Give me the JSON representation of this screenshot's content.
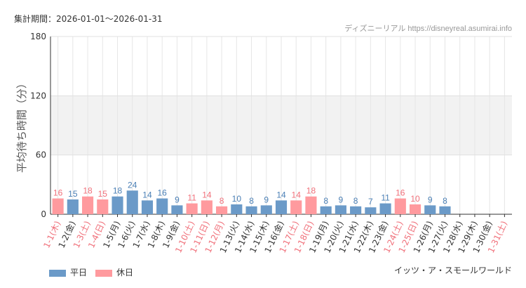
{
  "header": {
    "period": "集計期間：2026-01-01～2026-01-31",
    "source": "ディズニーリアル https://disneyreal.asumirai.info",
    "attraction": "イッツ・ア・スモールワールド"
  },
  "legend": {
    "weekday": "平日",
    "holiday": "休日"
  },
  "colors": {
    "weekday": "#6b9ac8",
    "holiday": "#ff9a9e",
    "weekday_text": "#4a7fb5",
    "holiday_text": "#f0707a",
    "band": "#f2f2f2"
  },
  "chart_data": {
    "type": "bar",
    "ylabel": "平均待ち時間（分）",
    "ylim": [
      0,
      180
    ],
    "yticks": [
      0,
      60,
      120,
      180
    ],
    "grid": true,
    "legend_position": "bottom-left",
    "categories": [
      "1-1(木)",
      "1-2(金)",
      "1-3(土)",
      "1-4(日)",
      "1-5(月)",
      "1-6(火)",
      "1-7(水)",
      "1-8(木)",
      "1-9(金)",
      "1-10(土)",
      "1-11(日)",
      "1-12(月)",
      "1-13(火)",
      "1-14(水)",
      "1-15(木)",
      "1-16(金)",
      "1-17(土)",
      "1-18(日)",
      "1-19(月)",
      "1-20(火)",
      "1-21(水)",
      "1-22(木)",
      "1-23(金)",
      "1-24(土)",
      "1-25(日)",
      "1-26(月)",
      "1-27(火)",
      "1-28(水)",
      "1-29(木)",
      "1-30(金)",
      "1-31(土)"
    ],
    "values": [
      16,
      15,
      18,
      15,
      18,
      24,
      14,
      16,
      9,
      11,
      14,
      8,
      10,
      8,
      9,
      14,
      14,
      18,
      8,
      9,
      8,
      7,
      11,
      16,
      10,
      9,
      8,
      null,
      null,
      null,
      null
    ],
    "holiday": [
      true,
      false,
      true,
      true,
      false,
      false,
      false,
      false,
      false,
      true,
      true,
      true,
      false,
      false,
      false,
      false,
      true,
      true,
      false,
      false,
      false,
      false,
      false,
      true,
      true,
      false,
      false,
      false,
      false,
      false,
      true
    ]
  }
}
